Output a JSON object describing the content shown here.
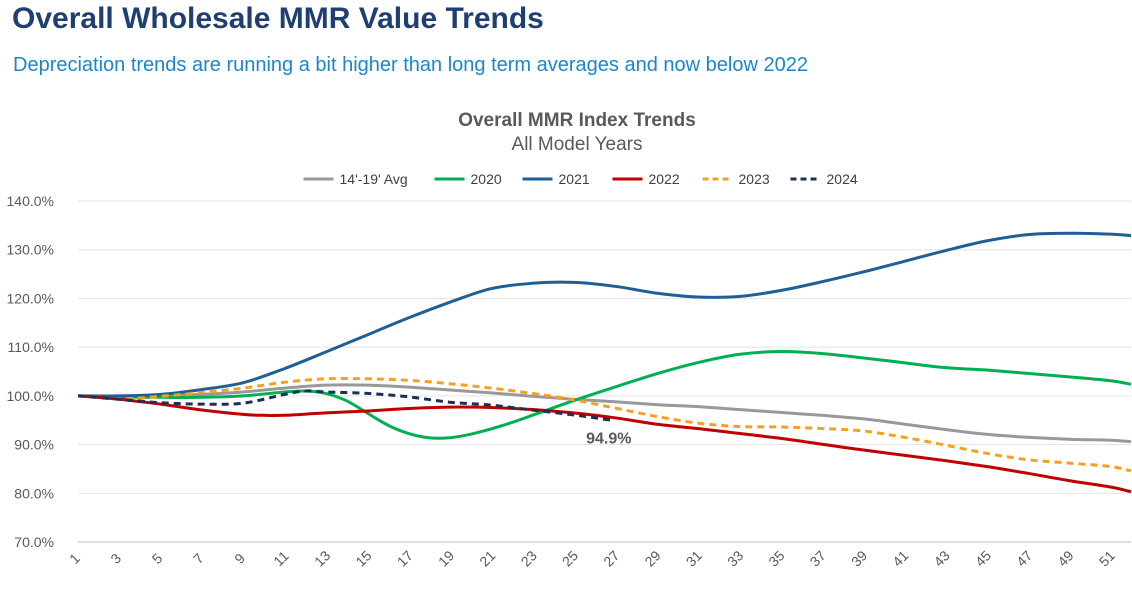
{
  "header": {
    "title": "Overall Wholesale MMR Value Trends",
    "subtitle": "Depreciation trends are running a bit higher than long term averages and now below 2022"
  },
  "chart_data": {
    "type": "line",
    "title": "Overall MMR Index Trends",
    "subtitle": "All Model Years",
    "xlabel": "",
    "ylabel": "",
    "xlim": [
      1,
      52
    ],
    "ylim": [
      70,
      140
    ],
    "x_ticks": [
      1,
      3,
      5,
      7,
      9,
      11,
      13,
      15,
      17,
      19,
      21,
      23,
      25,
      27,
      29,
      31,
      33,
      35,
      37,
      39,
      41,
      43,
      45,
      47,
      49,
      51
    ],
    "y_ticks": [
      "70.0%",
      "80.0%",
      "90.0%",
      "100.0%",
      "110.0%",
      "120.0%",
      "130.0%",
      "140.0%"
    ],
    "y_tick_values": [
      70,
      80,
      90,
      100,
      110,
      120,
      130,
      140
    ],
    "grid": "horizontal",
    "legend_position": "top",
    "series": [
      {
        "name": "14'-19' Avg",
        "color": "#999999",
        "dash": "solid",
        "x": [
          1,
          3,
          5,
          7,
          9,
          11,
          13,
          15,
          17,
          19,
          21,
          23,
          25,
          27,
          29,
          31,
          33,
          35,
          37,
          39,
          41,
          43,
          45,
          47,
          49,
          51,
          52
        ],
        "y": [
          100,
          99.9,
          100.1,
          100.3,
          100.8,
          101.6,
          102.2,
          102.2,
          101.8,
          101.2,
          100.6,
          99.9,
          99.3,
          98.8,
          98.2,
          97.8,
          97.2,
          96.6,
          96,
          95.3,
          94.2,
          93.1,
          92.1,
          91.5,
          91.1,
          90.9,
          90.6
        ]
      },
      {
        "name": "2020",
        "color": "#00b050",
        "dash": "solid",
        "x": [
          1,
          3,
          5,
          7,
          9,
          11,
          12,
          13,
          14,
          15,
          16,
          17,
          18,
          19,
          20,
          21,
          22,
          23,
          25,
          27,
          29,
          31,
          33,
          35,
          37,
          39,
          41,
          43,
          45,
          47,
          49,
          51,
          52
        ],
        "y": [
          100,
          99.8,
          99.7,
          99.7,
          100,
          100.8,
          101,
          100.5,
          99,
          96.5,
          94,
          92.3,
          91.4,
          91.4,
          92.1,
          93.2,
          94.5,
          96,
          99,
          101.8,
          104.5,
          106.8,
          108.5,
          109.1,
          108.7,
          107.8,
          106.8,
          105.8,
          105.3,
          104.6,
          103.9,
          103.1,
          102.4
        ]
      },
      {
        "name": "2021",
        "color": "#1f5f96",
        "dash": "solid",
        "x": [
          1,
          3,
          5,
          7,
          9,
          11,
          13,
          15,
          17,
          19,
          21,
          23,
          25,
          27,
          29,
          31,
          33,
          35,
          37,
          39,
          41,
          43,
          45,
          47,
          49,
          51,
          52
        ],
        "y": [
          100,
          100,
          100.3,
          101.3,
          102.7,
          105.6,
          109,
          112.5,
          116,
          119.2,
          122,
          123.1,
          123.3,
          122.5,
          121.1,
          120.3,
          120.4,
          121.6,
          123.4,
          125.4,
          127.6,
          129.8,
          131.8,
          133.1,
          133.4,
          133.2,
          132.9
        ]
      },
      {
        "name": "2022",
        "color": "#c00000",
        "dash": "solid",
        "x": [
          1,
          3,
          5,
          7,
          9,
          10,
          11,
          13,
          15,
          17,
          19,
          21,
          23,
          25,
          27,
          29,
          31,
          33,
          35,
          37,
          39,
          41,
          43,
          45,
          47,
          49,
          51,
          52
        ],
        "y": [
          100,
          99.3,
          98.3,
          97.1,
          96.2,
          96,
          96,
          96.5,
          96.9,
          97.4,
          97.7,
          97.6,
          97.2,
          96.5,
          95.5,
          94.2,
          93.3,
          92.3,
          91.3,
          90.1,
          88.9,
          87.8,
          86.7,
          85.5,
          84.1,
          82.6,
          81.3,
          80.3
        ]
      },
      {
        "name": "2023",
        "color": "#f5a023",
        "dash": "dashed",
        "x": [
          1,
          3,
          5,
          7,
          9,
          11,
          13,
          15,
          17,
          19,
          21,
          23,
          25,
          27,
          29,
          31,
          33,
          35,
          37,
          39,
          41,
          43,
          45,
          47,
          49,
          51,
          52
        ],
        "y": [
          100,
          99.4,
          99.9,
          100.7,
          101.6,
          102.8,
          103.5,
          103.5,
          103.2,
          102.5,
          101.6,
          100.5,
          99.2,
          97.5,
          95.8,
          94.4,
          93.7,
          93.6,
          93.3,
          92.8,
          91.5,
          89.9,
          88.2,
          86.9,
          86.2,
          85.5,
          84.6
        ]
      },
      {
        "name": "2024",
        "color": "#1a2f5a",
        "dash": "dashed",
        "x": [
          1,
          3,
          5,
          7,
          9,
          11,
          12,
          13,
          15,
          17,
          19,
          21,
          23,
          25,
          27
        ],
        "y": [
          100,
          99.3,
          98.6,
          98.3,
          98.5,
          100.3,
          101,
          100.8,
          100.5,
          99.8,
          98.7,
          98.1,
          97.1,
          96.1,
          94.9
        ]
      }
    ],
    "annotations": [
      {
        "text": "94.9%",
        "x": 27,
        "y": 94.9,
        "series": "2024"
      }
    ]
  }
}
